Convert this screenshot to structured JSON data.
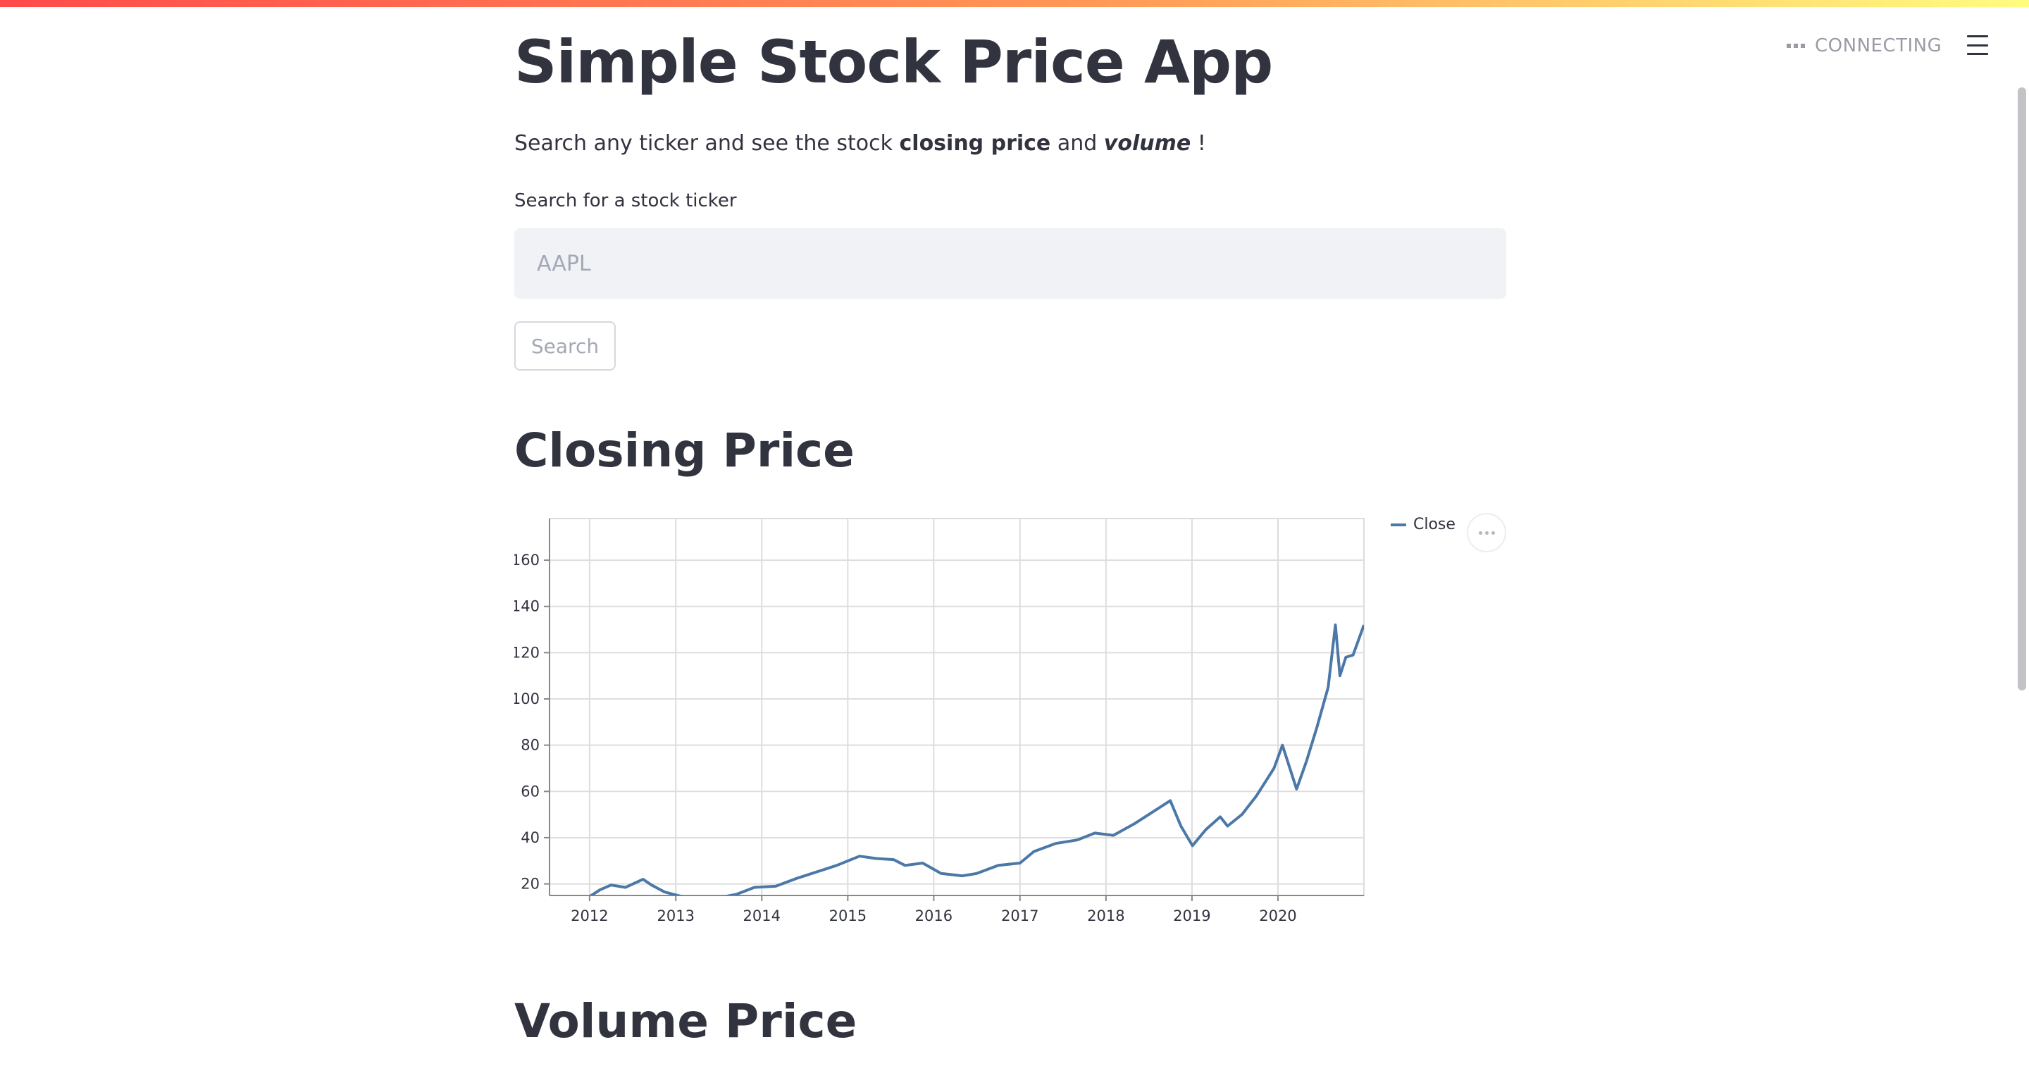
{
  "status": {
    "text": "CONNECTING"
  },
  "app": {
    "title": "Simple Stock Price App",
    "intro": {
      "prefix": "Search any ticker and see the stock ",
      "bold": "closing price",
      "middle": " and ",
      "italic_bold": "volume",
      "suffix": " !"
    }
  },
  "search": {
    "label": "Search for a stock ticker",
    "placeholder": "AAPL",
    "value": "",
    "button_label": "Search"
  },
  "sections": {
    "closing_title": "Closing Price",
    "volume_title": "Volume Price"
  },
  "colors": {
    "accent": "#4c78a8",
    "text": "#31333f",
    "muted": "#9a9ca5",
    "input_bg": "#f0f2f6"
  },
  "icons": {
    "status": "status-dots-icon",
    "menu": "hamburger-menu-icon",
    "chart_menu": "ellipsis-icon"
  },
  "chart_data": {
    "type": "line",
    "title": "",
    "xlabel": "",
    "ylabel": "",
    "x_ticks": [
      "2012",
      "2013",
      "2014",
      "2015",
      "2016",
      "2017",
      "2018",
      "2019",
      "2020"
    ],
    "y_ticks": [
      20,
      40,
      60,
      80,
      100,
      120,
      140,
      160
    ],
    "xlim": [
      "2011-07-15",
      "2020-12-31"
    ],
    "ylim": [
      15,
      178
    ],
    "grid": true,
    "legend_position": "top-right",
    "series": [
      {
        "name": "Close",
        "color": "#4c78a8",
        "x": [
          "2012-01-01",
          "2012-02-15",
          "2012-04-01",
          "2012-06-01",
          "2012-08-15",
          "2012-09-20",
          "2012-11-15",
          "2013-01-10",
          "2013-04-20",
          "2013-07-01",
          "2013-09-15",
          "2013-12-01",
          "2014-03-01",
          "2014-06-01",
          "2014-09-01",
          "2014-11-15",
          "2015-02-20",
          "2015-05-01",
          "2015-07-15",
          "2015-09-01",
          "2015-11-15",
          "2016-02-01",
          "2016-05-01",
          "2016-07-01",
          "2016-10-01",
          "2017-01-01",
          "2017-03-01",
          "2017-06-01",
          "2017-09-01",
          "2017-11-15",
          "2018-02-01",
          "2018-05-01",
          "2018-08-01",
          "2018-10-01",
          "2018-11-15",
          "2019-01-03",
          "2019-03-01",
          "2019-05-01",
          "2019-06-01",
          "2019-08-01",
          "2019-10-01",
          "2019-12-15",
          "2020-01-20",
          "2020-03-20",
          "2020-05-01",
          "2020-06-15",
          "2020-08-01",
          "2020-09-01",
          "2020-09-20",
          "2020-10-15",
          "2020-11-15",
          "2020-12-31"
        ],
        "values": [
          14.5,
          17.5,
          19.5,
          18.5,
          22.0,
          19.5,
          16.5,
          15.0,
          12.5,
          14.0,
          15.5,
          18.5,
          19.0,
          22.5,
          25.5,
          28.0,
          32.0,
          31.0,
          30.5,
          28.0,
          29.0,
          24.5,
          23.5,
          24.5,
          28.0,
          29.0,
          34.0,
          37.5,
          39.0,
          42.0,
          41.0,
          46.0,
          52.0,
          56.0,
          45.0,
          36.5,
          43.5,
          49.0,
          45.0,
          50.0,
          58.0,
          70.0,
          80.0,
          61.0,
          73.0,
          88.0,
          105.0,
          132.0,
          110.0,
          118.0,
          119.0,
          132.0
        ]
      }
    ]
  }
}
